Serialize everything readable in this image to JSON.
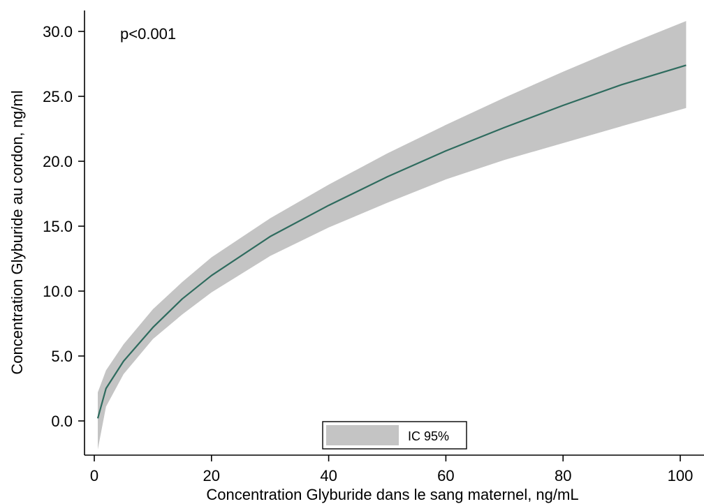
{
  "chart_data": {
    "type": "line",
    "xlabel": "Concentration Glyburide dans le sang maternel, ng/mL",
    "ylabel": "Concentration Glyburide au cordon, ng/ml",
    "annotation": "p<0.001",
    "xlim": [
      0,
      101
    ],
    "ylim": [
      -0.5,
      31
    ],
    "x_ticks": [
      0,
      20,
      40,
      60,
      80,
      100
    ],
    "x_tick_labels": [
      "0",
      "20",
      "40",
      "60",
      "80",
      "100"
    ],
    "y_ticks": [
      0,
      5,
      10,
      15,
      20,
      25,
      30
    ],
    "y_tick_labels": [
      "0.0",
      "5.0",
      "10.0",
      "15.0",
      "20.0",
      "25.0",
      "30.0"
    ],
    "grid": false,
    "legend": {
      "position": "bottom-center",
      "entries": [
        "IC 95%"
      ]
    },
    "colors": {
      "line": "#2e6b5e",
      "band": "#c4c4c4"
    },
    "series": [
      {
        "name": "",
        "role": "estimate",
        "x": [
          0.6,
          2,
          5,
          10,
          15,
          20,
          30,
          40,
          50,
          60,
          70,
          80,
          90,
          101
        ],
        "y": [
          0.2,
          2.5,
          4.6,
          7.2,
          9.4,
          11.2,
          14.2,
          16.6,
          18.8,
          20.8,
          22.6,
          24.3,
          25.9,
          27.4
        ]
      },
      {
        "name": "IC 95%",
        "role": "ci-band",
        "x": [
          0.6,
          2,
          5,
          10,
          15,
          20,
          30,
          40,
          50,
          60,
          70,
          80,
          90,
          101
        ],
        "lower": [
          -2.2,
          1.1,
          3.6,
          6.3,
          8.2,
          9.9,
          12.7,
          14.9,
          16.8,
          18.6,
          20.1,
          21.4,
          22.7,
          24.1
        ],
        "upper": [
          2.2,
          3.9,
          5.9,
          8.6,
          10.7,
          12.6,
          15.6,
          18.2,
          20.6,
          22.8,
          24.9,
          26.9,
          28.8,
          30.8
        ]
      }
    ]
  }
}
